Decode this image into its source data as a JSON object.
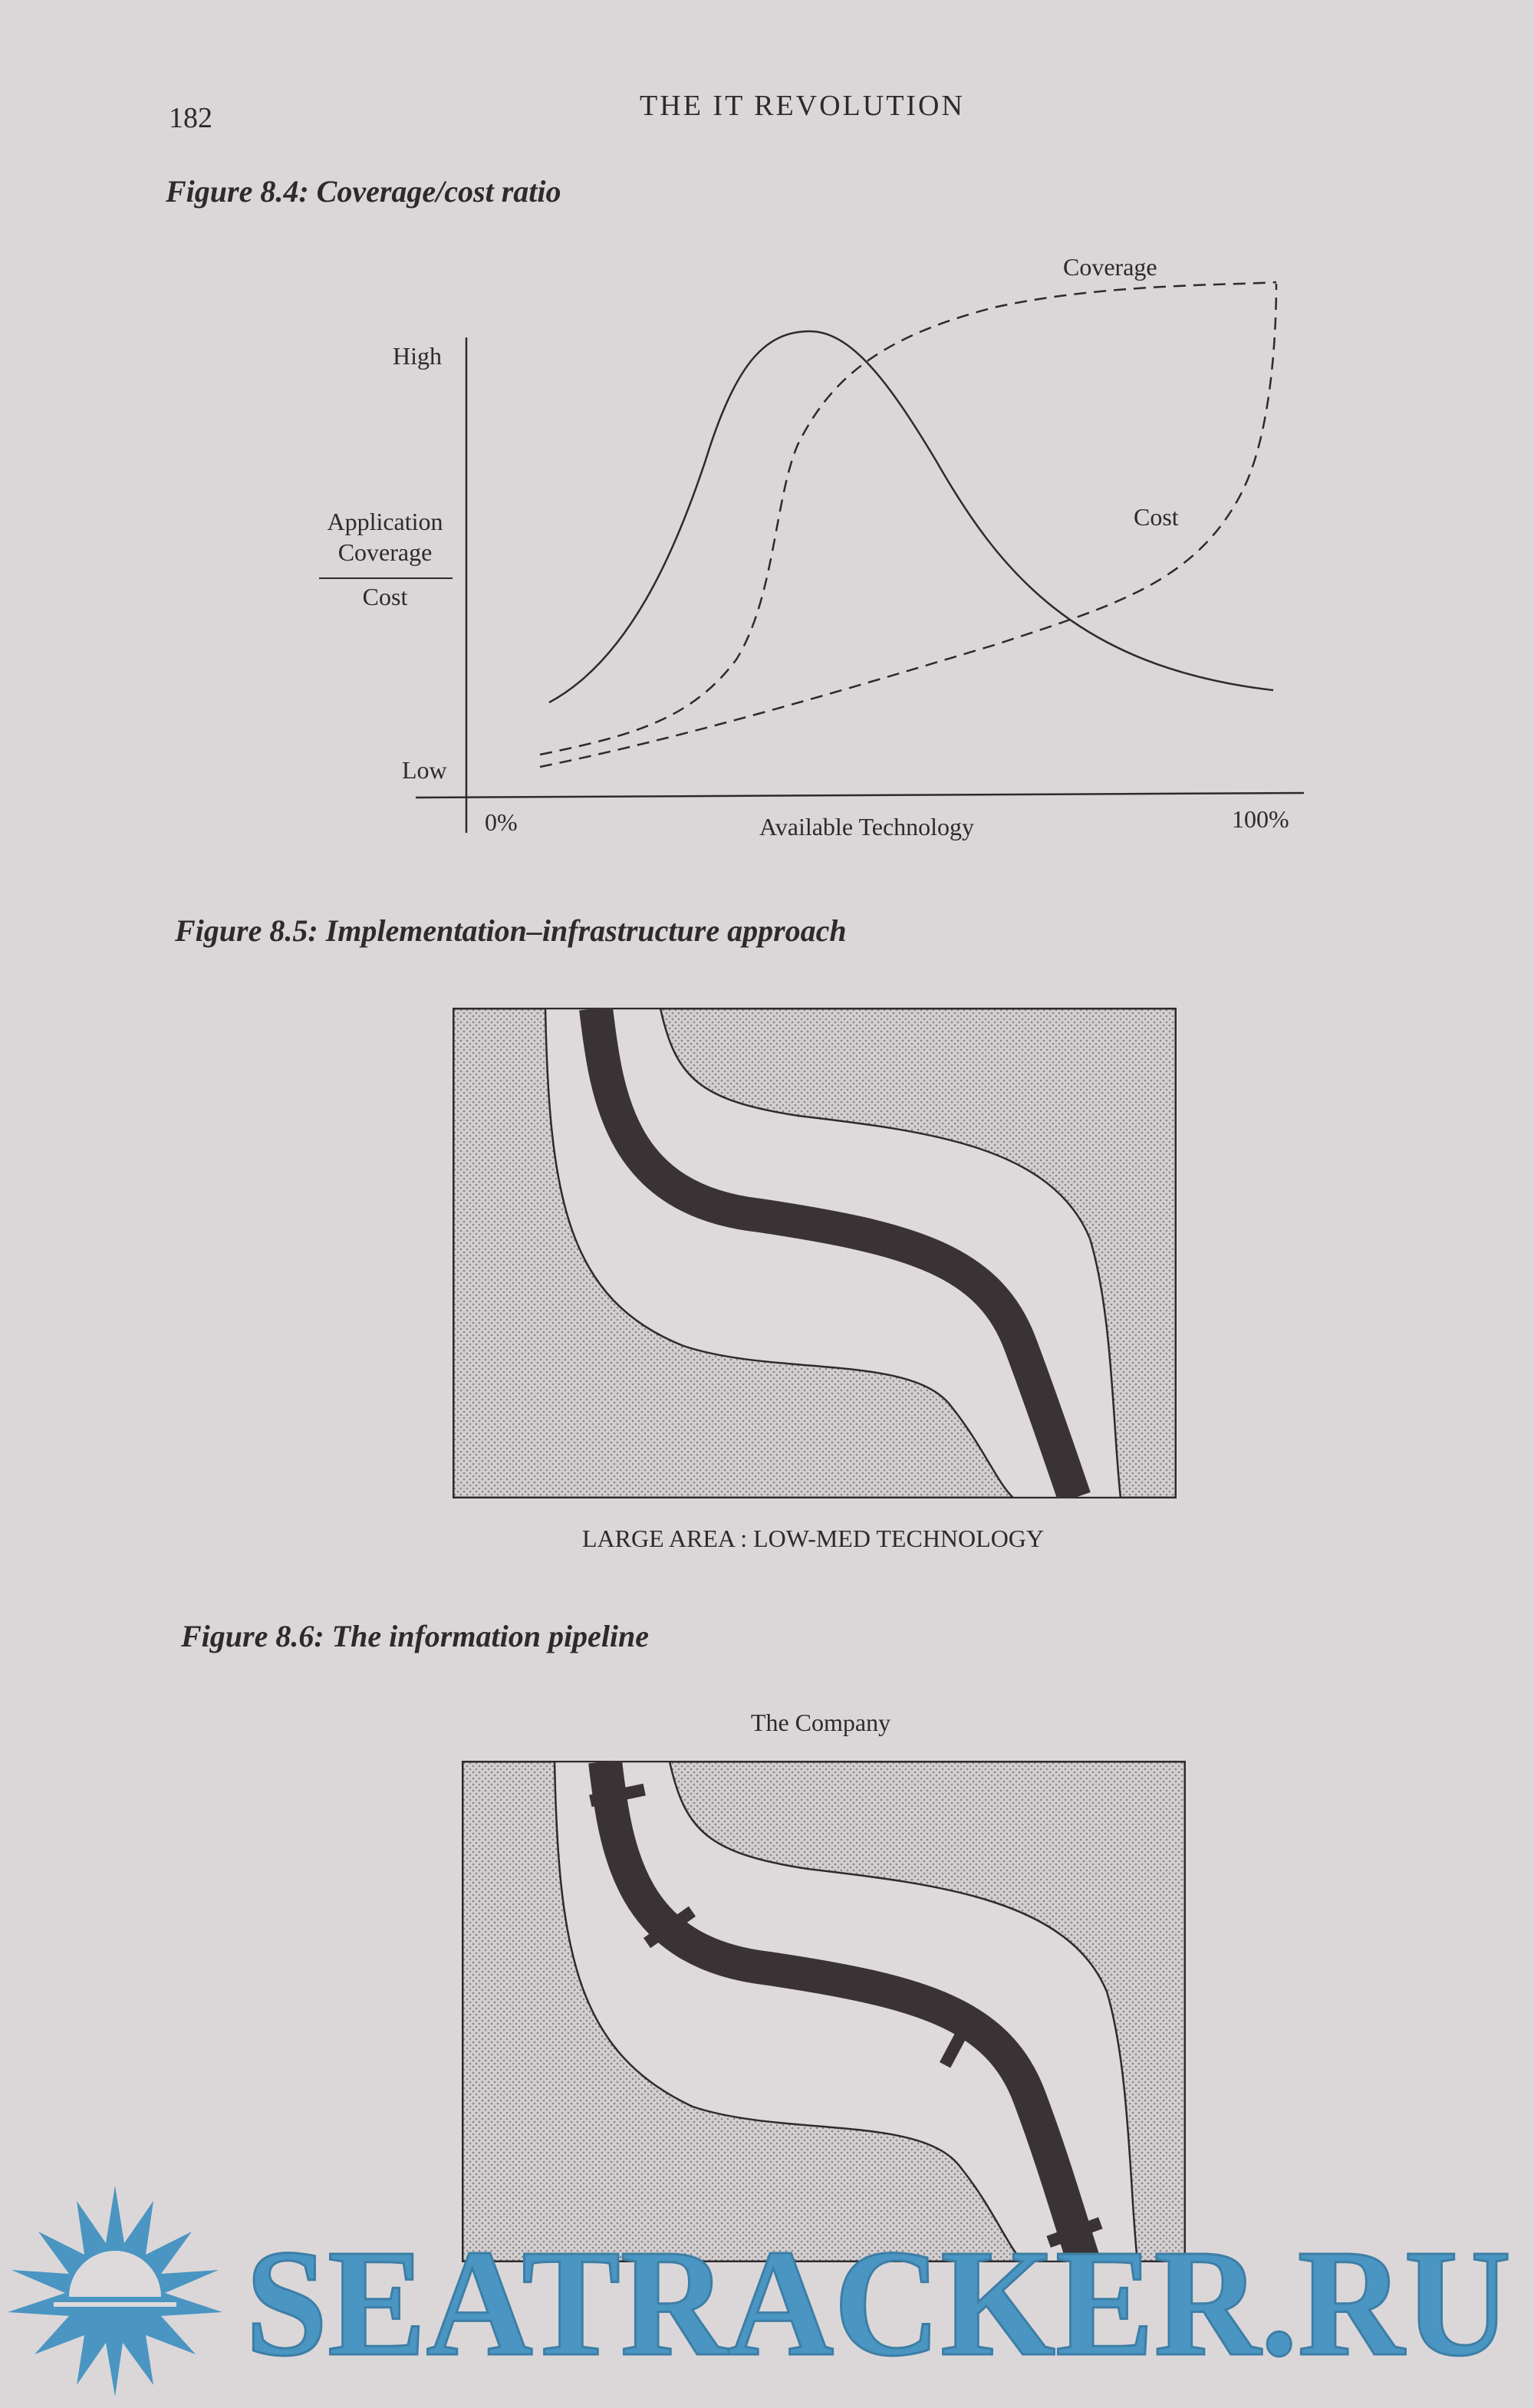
{
  "header": {
    "page_number": "182",
    "running_title": "THE IT REVOLUTION"
  },
  "figure_8_4": {
    "caption": "Figure 8.4: Coverage/cost ratio",
    "y_high": "High",
    "y_low": "Low",
    "y_label_numerator_1": "Application",
    "y_label_numerator_2": "Coverage",
    "y_label_denominator": "Cost",
    "x_start": "0%",
    "x_label": "Available Technology",
    "x_end": "100%",
    "curve_label_coverage": "Coverage",
    "curve_label_cost": "Cost"
  },
  "figure_8_5": {
    "caption": "Figure 8.5: Implementation–infrastructure approach",
    "footer_label": "LARGE AREA : LOW-MED TECHNOLOGY"
  },
  "figure_8_6": {
    "caption": "Figure 8.6: The information pipeline",
    "top_label": "The Company"
  },
  "watermark": {
    "text": "SEATRACKER.RU",
    "color": "#4a95c2"
  },
  "colors": {
    "page": "#dbd7d9",
    "ink": "#2e2a2c",
    "pipe": "#3a3336"
  }
}
